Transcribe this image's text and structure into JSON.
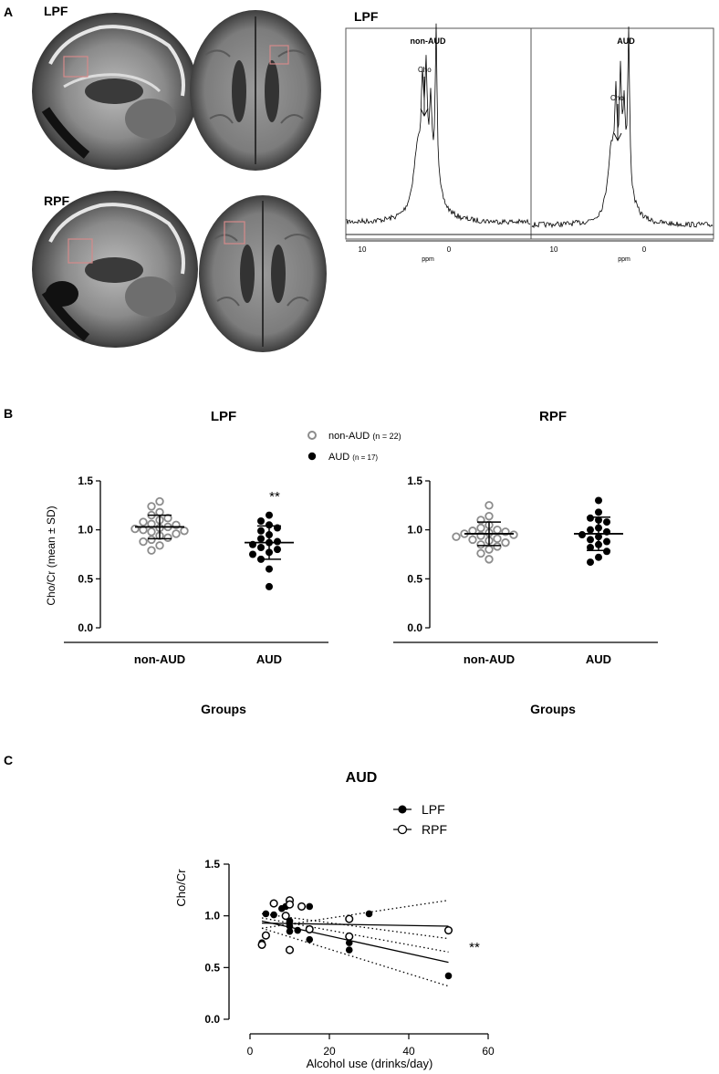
{
  "panel_a": {
    "label": "A",
    "mri_left_top_label": "LPF",
    "mri_left_bottom_label": "RPF",
    "spectrum": {
      "title": "LPF",
      "sub_left": "non-AUD",
      "sub_right": "AUD",
      "peak_label": "Cho",
      "axis_unit": "ppm",
      "ticks": [
        "10",
        "0"
      ]
    }
  },
  "panel_b": {
    "label": "B",
    "legend": [
      {
        "label": "non-AUD",
        "n": "(n = 22)",
        "color": "#8c8c8c"
      },
      {
        "label": "AUD",
        "n": "(n = 17)",
        "color": "#000000"
      }
    ]
  },
  "panel_c": {
    "label": "C",
    "legend": [
      {
        "label": "LPF",
        "marker": "filled"
      },
      {
        "label": "RPF",
        "marker": "open"
      }
    ],
    "sig": "**"
  },
  "chart_data": [
    {
      "type": "scatter",
      "title": "LPF",
      "ylabel": "Cho/Cr (mean ± SD)",
      "xlabel": "Groups",
      "categories": [
        "non-AUD",
        "AUD"
      ],
      "ylim": [
        0,
        1.5
      ],
      "yticks": [
        "0.0",
        "0.5",
        "1.0",
        "1.5"
      ],
      "annotation": "**",
      "series": [
        {
          "name": "non-AUD",
          "mean": 1.03,
          "sd": 0.12,
          "values": [
            1.29,
            1.24,
            1.18,
            1.15,
            1.12,
            1.1,
            1.08,
            1.06,
            1.05,
            1.03,
            1.02,
            1.01,
            1.0,
            0.99,
            0.98,
            0.96,
            0.94,
            0.92,
            0.9,
            0.88,
            0.84,
            0.79
          ]
        },
        {
          "name": "AUD",
          "mean": 0.87,
          "sd": 0.17,
          "values": [
            1.15,
            1.09,
            1.05,
            1.02,
            0.99,
            0.95,
            0.91,
            0.88,
            0.87,
            0.85,
            0.82,
            0.8,
            0.77,
            0.75,
            0.7,
            0.6,
            0.42
          ]
        }
      ]
    },
    {
      "type": "scatter",
      "title": "RPF",
      "xlabel": "Groups",
      "categories": [
        "non-AUD",
        "AUD"
      ],
      "ylim": [
        0,
        1.5
      ],
      "yticks": [
        "0.0",
        "0.5",
        "1.0",
        "1.5"
      ],
      "series": [
        {
          "name": "non-AUD",
          "mean": 0.96,
          "sd": 0.12,
          "values": [
            1.25,
            1.14,
            1.1,
            1.05,
            1.02,
            1.0,
            0.99,
            0.98,
            0.97,
            0.96,
            0.95,
            0.94,
            0.93,
            0.91,
            0.9,
            0.89,
            0.87,
            0.85,
            0.83,
            0.8,
            0.76,
            0.7
          ]
        },
        {
          "name": "AUD",
          "mean": 0.96,
          "sd": 0.17,
          "values": [
            1.3,
            1.18,
            1.12,
            1.1,
            1.08,
            1.02,
            1.0,
            0.98,
            0.95,
            0.93,
            0.9,
            0.88,
            0.85,
            0.82,
            0.78,
            0.72,
            0.67
          ]
        }
      ]
    },
    {
      "type": "scatter",
      "title": "AUD",
      "xlabel": "Alcohol use (drinks/day)",
      "ylabel": "Cho/Cr",
      "xlim": [
        0,
        60
      ],
      "ylim": [
        0,
        1.5
      ],
      "xticks": [
        "0",
        "20",
        "40",
        "60"
      ],
      "yticks": [
        "0.0",
        "0.5",
        "1.0",
        "1.5"
      ],
      "series": [
        {
          "name": "LPF",
          "marker": "filled",
          "points": [
            [
              3,
              0.74
            ],
            [
              4,
              1.02
            ],
            [
              6,
              1.01
            ],
            [
              8,
              1.07
            ],
            [
              9,
              1.09
            ],
            [
              10,
              0.95
            ],
            [
              10,
              0.9
            ],
            [
              10,
              0.85
            ],
            [
              12,
              0.86
            ],
            [
              15,
              1.09
            ],
            [
              15,
              0.77
            ],
            [
              25,
              0.74
            ],
            [
              25,
              0.67
            ],
            [
              30,
              1.02
            ],
            [
              50,
              0.42
            ]
          ],
          "fit": [
            [
              3,
              0.95
            ],
            [
              50,
              0.55
            ]
          ],
          "ci_upper": [
            [
              3,
              1.02
            ],
            [
              50,
              0.78
            ]
          ],
          "ci_lower": [
            [
              3,
              0.88
            ],
            [
              50,
              0.32
            ]
          ]
        },
        {
          "name": "RPF",
          "marker": "open",
          "points": [
            [
              3,
              0.72
            ],
            [
              4,
              0.81
            ],
            [
              6,
              1.12
            ],
            [
              9,
              1.0
            ],
            [
              10,
              1.15
            ],
            [
              10,
              1.11
            ],
            [
              10,
              0.67
            ],
            [
              13,
              1.09
            ],
            [
              15,
              0.87
            ],
            [
              25,
              0.97
            ],
            [
              25,
              0.8
            ],
            [
              50,
              0.86
            ]
          ],
          "fit": [
            [
              3,
              0.93
            ],
            [
              50,
              0.9
            ]
          ],
          "ci_upper": [
            [
              3,
              0.88
            ],
            [
              50,
              1.15
            ]
          ],
          "ci_lower": [
            [
              3,
              0.98
            ],
            [
              50,
              0.65
            ]
          ]
        }
      ]
    }
  ]
}
